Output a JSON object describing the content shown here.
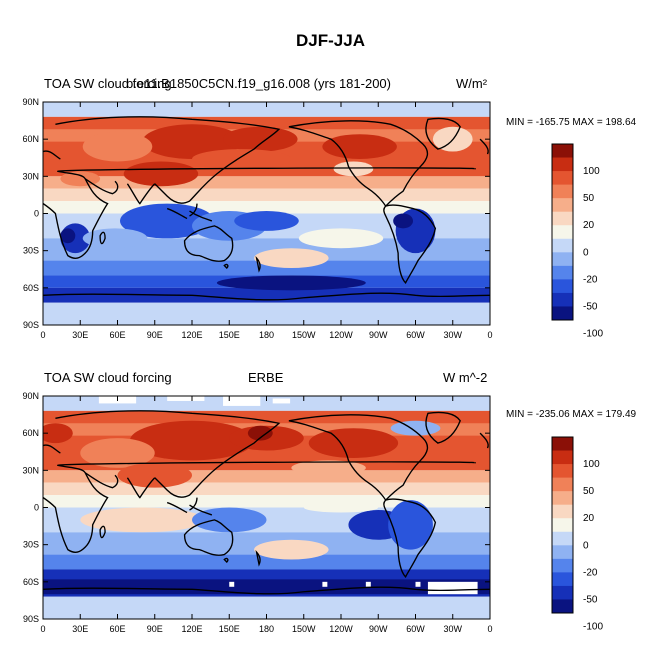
{
  "title": "DJF-JJA",
  "panels": [
    {
      "left_title": "TOA SW cloud forcing",
      "center_title": "b.e11.B1850C5CN.f19_g16.008 (yrs 181-200)",
      "units": "W/m²",
      "min_max": "MIN = -165.75 MAX = 198.64",
      "colorbar_labels": [
        "100",
        "50",
        "20",
        "0",
        "-20",
        "-50",
        "-100"
      ]
    },
    {
      "left_title": "TOA SW cloud forcing",
      "center_title": "ERBE",
      "units": "W m^-2",
      "min_max": "MIN = -235.06 MAX = 179.49",
      "colorbar_labels": [
        "100",
        "50",
        "20",
        "0",
        "-20",
        "-50",
        "-100"
      ]
    }
  ],
  "lat_labels": [
    "90N",
    "60N",
    "30N",
    "0",
    "30S",
    "60S",
    "90S"
  ],
  "lon_labels": [
    "0",
    "30E",
    "60E",
    "90E",
    "120E",
    "150E",
    "180",
    "150W",
    "120W",
    "90W",
    "60W",
    "30W",
    "0"
  ],
  "colorbar_colors": [
    "#0a1380",
    "#1630b8",
    "#2a55dc",
    "#5584ec",
    "#8fb2f2",
    "#c5d8f7",
    "#f6f6ea",
    "#f9d8c2",
    "#f6ae8a",
    "#f08158",
    "#e45530",
    "#c82d12",
    "#8b1007"
  ]
}
